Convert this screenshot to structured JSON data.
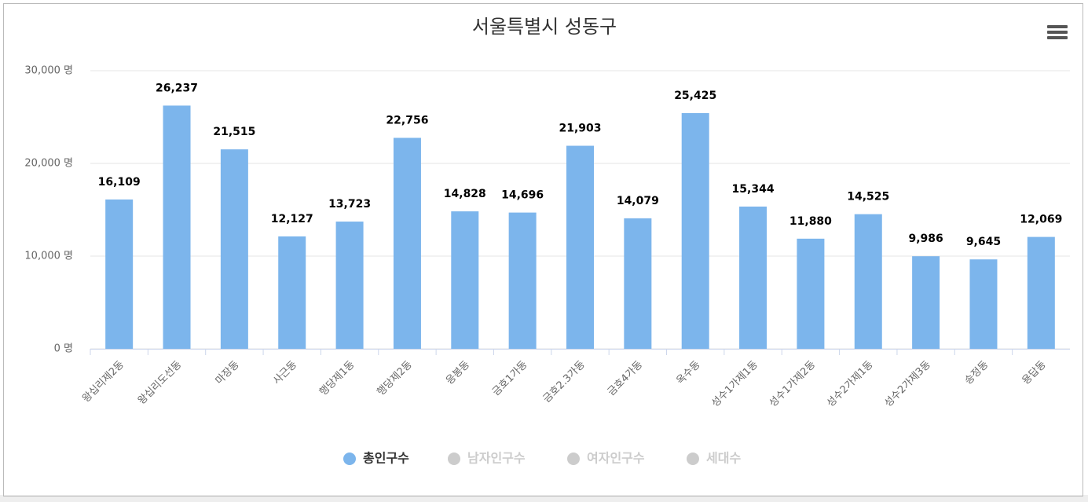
{
  "chart_data": {
    "type": "bar",
    "title": "서울특별시 성동구",
    "categories": [
      "왕십리제2동",
      "왕십리도선동",
      "마장동",
      "사근동",
      "행당제1동",
      "행당제2동",
      "응봉동",
      "금호1가동",
      "금호2.3가동",
      "금호4가동",
      "옥수동",
      "성수1가제1동",
      "성수1가제2동",
      "성수2가제1동",
      "성수2가제3동",
      "송정동",
      "용답동"
    ],
    "series": [
      {
        "name": "총인구수",
        "color": "#7cb5ec",
        "visible": true,
        "values": [
          16109,
          26237,
          21515,
          12127,
          13723,
          22756,
          14828,
          14696,
          21903,
          14079,
          25425,
          15344,
          11880,
          14525,
          9986,
          9645,
          12069
        ],
        "value_labels": [
          "16,109",
          "26,237",
          "21,515",
          "12,127",
          "13,723",
          "22,756",
          "14,828",
          "14,696",
          "21,903",
          "14,079",
          "25,425",
          "15,344",
          "11,880",
          "14,525",
          "9,986",
          "9,645",
          "12,069"
        ]
      },
      {
        "name": "남자인구수",
        "color": "#cccccc",
        "visible": false
      },
      {
        "name": "여자인구수",
        "color": "#cccccc",
        "visible": false
      },
      {
        "name": "세대수",
        "color": "#cccccc",
        "visible": false
      }
    ],
    "ylim": [
      0,
      30000
    ],
    "yticks": [
      {
        "value": 0,
        "label": "0 명"
      },
      {
        "value": 10000,
        "label": "10,000 명"
      },
      {
        "value": 20000,
        "label": "20,000 명"
      },
      {
        "value": 30000,
        "label": "30,000 명"
      }
    ],
    "grid": true,
    "legend": "bottom"
  }
}
